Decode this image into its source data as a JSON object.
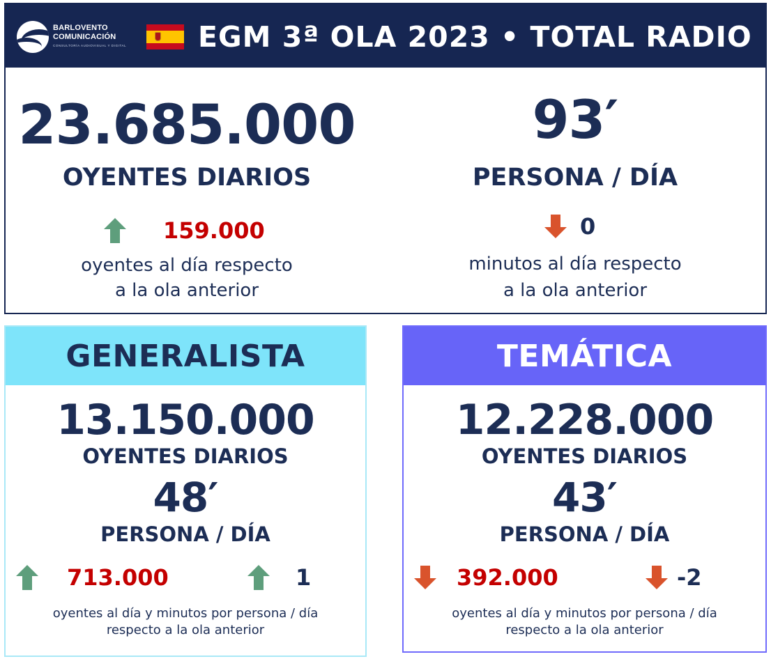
{
  "header": {
    "logo_name_line1": "BARLOVENTO",
    "logo_name_line2": "COMUNICACIÓN",
    "logo_tagline": "CONSULTORÍA AUDIOVISUAL Y DIGITAL",
    "flag": "spain-flag",
    "title": "EGM 3ª OLA 2023 • TOTAL RADIO",
    "bg_color": "#162652"
  },
  "total": {
    "listeners": "23.685.000",
    "listeners_label": "OYENTES DIARIOS",
    "listeners_change": "159.000",
    "listeners_change_direction": "up",
    "listeners_desc_line1": "oyentes al día respecto",
    "listeners_desc_line2": "a la ola anterior",
    "minutes": "93′",
    "minutes_label": "PERSONA / DÍA",
    "minutes_change": "0",
    "minutes_change_direction": "down",
    "minutes_desc_line1": "minutos al día respecto",
    "minutes_desc_line2": "a la ola anterior"
  },
  "generalista": {
    "title": "GENERALISTA",
    "header_color": "#7ee4fa",
    "listeners": "13.150.000",
    "listeners_label": "OYENTES DIARIOS",
    "minutes": "48′",
    "minutes_label": "PERSONA / DÍA",
    "listeners_change": "713.000",
    "listeners_change_direction": "up",
    "minutes_change": "1",
    "minutes_change_direction": "up",
    "desc_line1": "oyentes al día y minutos por persona / día",
    "desc_line2": "respecto a la ola anterior"
  },
  "tematica": {
    "title": "TEMÁTICA",
    "header_color": "#6764f8",
    "listeners": "12.228.000",
    "listeners_label": "OYENTES DIARIOS",
    "minutes": "43′",
    "minutes_label": "PERSONA / DÍA",
    "listeners_change": "392.000",
    "listeners_change_direction": "down",
    "minutes_change": "-2",
    "minutes_change_direction": "down",
    "desc_line1": "oyentes al día y minutos por persona / día",
    "desc_line2": "respecto a la ola anterior"
  },
  "colors": {
    "up_arrow": "#5e9e7c",
    "down_arrow": "#d9532c",
    "change_value": "#c40000",
    "text": "#1c2d55"
  }
}
